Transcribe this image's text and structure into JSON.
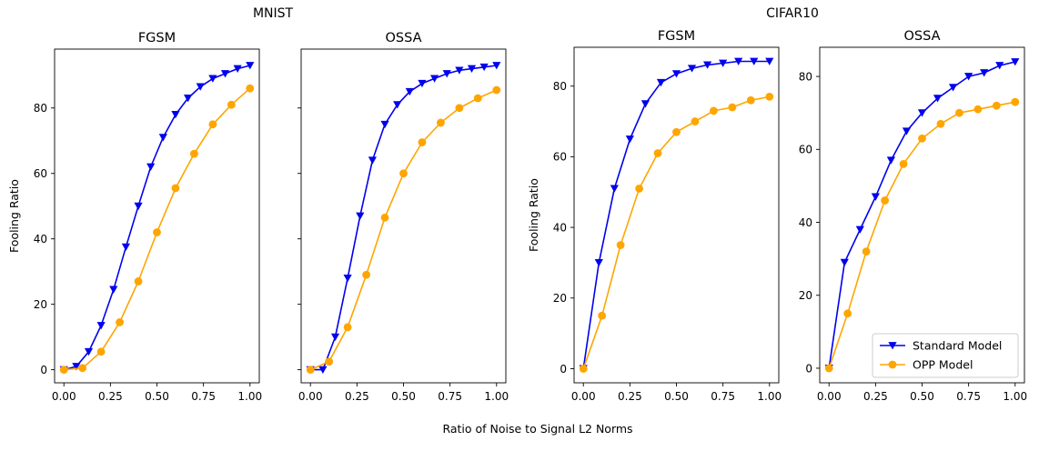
{
  "figure": {
    "group_titles": [
      "MNIST",
      "CIFAR10"
    ],
    "shared_xlabel": "Ratio of Noise to Signal L2 Norms"
  },
  "colors": {
    "standard": "#0000ee",
    "opp": "#ffa500"
  },
  "legend": {
    "location": "lower-right",
    "entries": [
      "Standard Model",
      "OPP Model"
    ]
  },
  "chart_data": [
    {
      "type": "line",
      "group": "MNIST",
      "title": "FGSM",
      "xlabel": "",
      "ylabel": "Fooling Ratio",
      "xlim": [
        -0.05,
        1.05
      ],
      "ylim": [
        -4,
        98
      ],
      "xticks": [
        0.0,
        0.25,
        0.5,
        0.75,
        1.0
      ],
      "xtick_labels": [
        "0.00",
        "0.25",
        "0.50",
        "0.75",
        "1.00"
      ],
      "yticks": [
        0,
        20,
        40,
        60,
        80
      ],
      "ytick_labels": [
        "0",
        "20",
        "40",
        "60",
        "80"
      ],
      "grid": false,
      "series": [
        {
          "name": "Standard Model",
          "marker": "triangle-down",
          "x": [
            0.0,
            0.0667,
            0.1333,
            0.2,
            0.2667,
            0.3333,
            0.4,
            0.4667,
            0.5333,
            0.6,
            0.6667,
            0.7333,
            0.8,
            0.8667,
            0.9333,
            1.0
          ],
          "y": [
            0,
            1,
            5.5,
            13.5,
            24.5,
            37.5,
            50,
            62,
            71,
            78,
            83,
            86.5,
            89,
            90.5,
            92,
            93
          ]
        },
        {
          "name": "OPP Model",
          "marker": "circle",
          "x": [
            0.0,
            0.1,
            0.2,
            0.3,
            0.4,
            0.5,
            0.6,
            0.7,
            0.8,
            0.9,
            1.0
          ],
          "y": [
            0,
            0.5,
            5.5,
            14.5,
            27,
            42,
            55.5,
            66,
            75,
            81,
            86
          ]
        }
      ]
    },
    {
      "type": "line",
      "group": "MNIST",
      "title": "OSSA",
      "xlabel": "",
      "ylabel": "",
      "xlim": [
        -0.05,
        1.05
      ],
      "ylim": [
        -4,
        98
      ],
      "xticks": [
        0.0,
        0.25,
        0.5,
        0.75,
        1.0
      ],
      "xtick_labels": [
        "0.00",
        "0.25",
        "0.50",
        "0.75",
        "1.00"
      ],
      "yticks": [
        0,
        20,
        40,
        60,
        80
      ],
      "ytick_labels": [],
      "grid": false,
      "series": [
        {
          "name": "Standard Model",
          "marker": "triangle-down",
          "x": [
            0.0,
            0.0667,
            0.1333,
            0.2,
            0.2667,
            0.3333,
            0.4,
            0.4667,
            0.5333,
            0.6,
            0.6667,
            0.7333,
            0.8,
            0.8667,
            0.9333,
            1.0
          ],
          "y": [
            0,
            0,
            10,
            28,
            47,
            64,
            75,
            81,
            85,
            87.5,
            89,
            90.5,
            91.5,
            92,
            92.5,
            93
          ]
        },
        {
          "name": "OPP Model",
          "marker": "circle",
          "x": [
            0.0,
            0.1,
            0.2,
            0.3,
            0.4,
            0.5,
            0.6,
            0.7,
            0.8,
            0.9,
            1.0
          ],
          "y": [
            0,
            2.5,
            13,
            29,
            46.5,
            60,
            69.5,
            75.5,
            80,
            83,
            85.5
          ]
        }
      ]
    },
    {
      "type": "line",
      "group": "CIFAR10",
      "title": "FGSM",
      "xlabel": "",
      "ylabel": "Fooling Ratio",
      "xlim": [
        -0.05,
        1.05
      ],
      "ylim": [
        -4,
        91
      ],
      "xticks": [
        0.0,
        0.25,
        0.5,
        0.75,
        1.0
      ],
      "xtick_labels": [
        "0.00",
        "0.25",
        "0.50",
        "0.75",
        "1.00"
      ],
      "yticks": [
        0,
        20,
        40,
        60,
        80
      ],
      "ytick_labels": [
        "0",
        "20",
        "40",
        "60",
        "80"
      ],
      "grid": false,
      "series": [
        {
          "name": "Standard Model",
          "marker": "triangle-down",
          "x": [
            0.0,
            0.0833,
            0.1667,
            0.25,
            0.3333,
            0.4167,
            0.5,
            0.5833,
            0.6667,
            0.75,
            0.8333,
            0.9167,
            1.0
          ],
          "y": [
            0,
            30,
            51,
            65,
            75,
            81,
            83.5,
            85,
            86,
            86.5,
            87,
            87,
            87
          ]
        },
        {
          "name": "OPP Model",
          "marker": "circle",
          "x": [
            0.0,
            0.1,
            0.2,
            0.3,
            0.4,
            0.5,
            0.6,
            0.7,
            0.8,
            0.9,
            1.0
          ],
          "y": [
            0,
            15,
            35,
            51,
            61,
            67,
            70,
            73,
            74,
            76,
            77
          ]
        }
      ]
    },
    {
      "type": "line",
      "group": "CIFAR10",
      "title": "OSSA",
      "xlabel": "",
      "ylabel": "",
      "xlim": [
        -0.05,
        1.05
      ],
      "ylim": [
        -4,
        88
      ],
      "xticks": [
        0.0,
        0.25,
        0.5,
        0.75,
        1.0
      ],
      "xtick_labels": [
        "0.00",
        "0.25",
        "0.50",
        "0.75",
        "1.00"
      ],
      "yticks": [
        0,
        20,
        40,
        60,
        80
      ],
      "ytick_labels": [
        "0",
        "20",
        "40",
        "60",
        "80"
      ],
      "grid": false,
      "series": [
        {
          "name": "Standard Model",
          "marker": "triangle-down",
          "x": [
            0.0,
            0.0833,
            0.1667,
            0.25,
            0.3333,
            0.4167,
            0.5,
            0.5833,
            0.6667,
            0.75,
            0.8333,
            0.9167,
            1.0
          ],
          "y": [
            0,
            29,
            38,
            47,
            57,
            65,
            70,
            74,
            77,
            80,
            81,
            83,
            84
          ]
        },
        {
          "name": "OPP Model",
          "marker": "circle",
          "x": [
            0.0,
            0.1,
            0.2,
            0.3,
            0.4,
            0.5,
            0.6,
            0.7,
            0.8,
            0.9,
            1.0
          ],
          "y": [
            0,
            15,
            32,
            46,
            56,
            63,
            67,
            70,
            71,
            72,
            73
          ]
        }
      ]
    }
  ]
}
